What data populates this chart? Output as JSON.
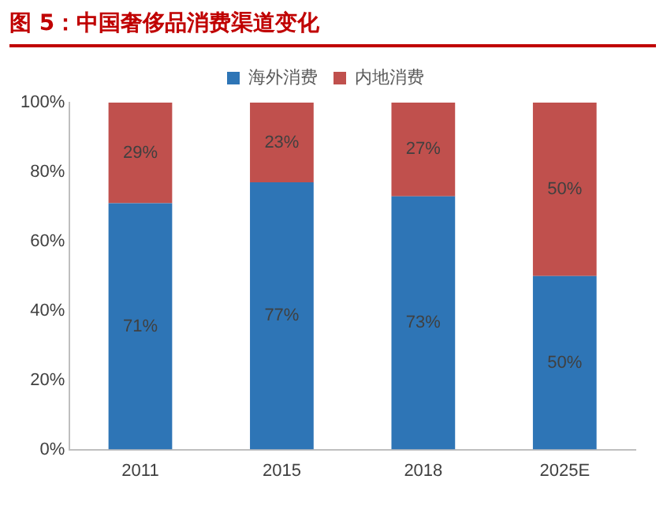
{
  "chart_data": {
    "type": "bar",
    "title": "图 5：中国奢侈品消费渠道变化",
    "categories": [
      "2011",
      "2015",
      "2018",
      "2025E"
    ],
    "stacked": true,
    "legend": "top",
    "grid": false,
    "series": [
      {
        "name": "海外消费",
        "color": "#2e75b6",
        "values": [
          71,
          77,
          73,
          50
        ],
        "value_labels": [
          "71%",
          "77%",
          "73%",
          "50%"
        ]
      },
      {
        "name": "内地消费",
        "color": "#c0504d",
        "values": [
          29,
          23,
          27,
          50
        ],
        "value_labels": [
          "29%",
          "23%",
          "27%",
          "50%"
        ]
      }
    ],
    "ylim": [
      0,
      100
    ],
    "yticks": [
      {
        "value": 0,
        "label": "0%"
      },
      {
        "value": 20,
        "label": "20%"
      },
      {
        "value": 40,
        "label": "40%"
      },
      {
        "value": 60,
        "label": "60%"
      },
      {
        "value": 80,
        "label": "80%"
      },
      {
        "value": 100,
        "label": "100%"
      }
    ]
  }
}
